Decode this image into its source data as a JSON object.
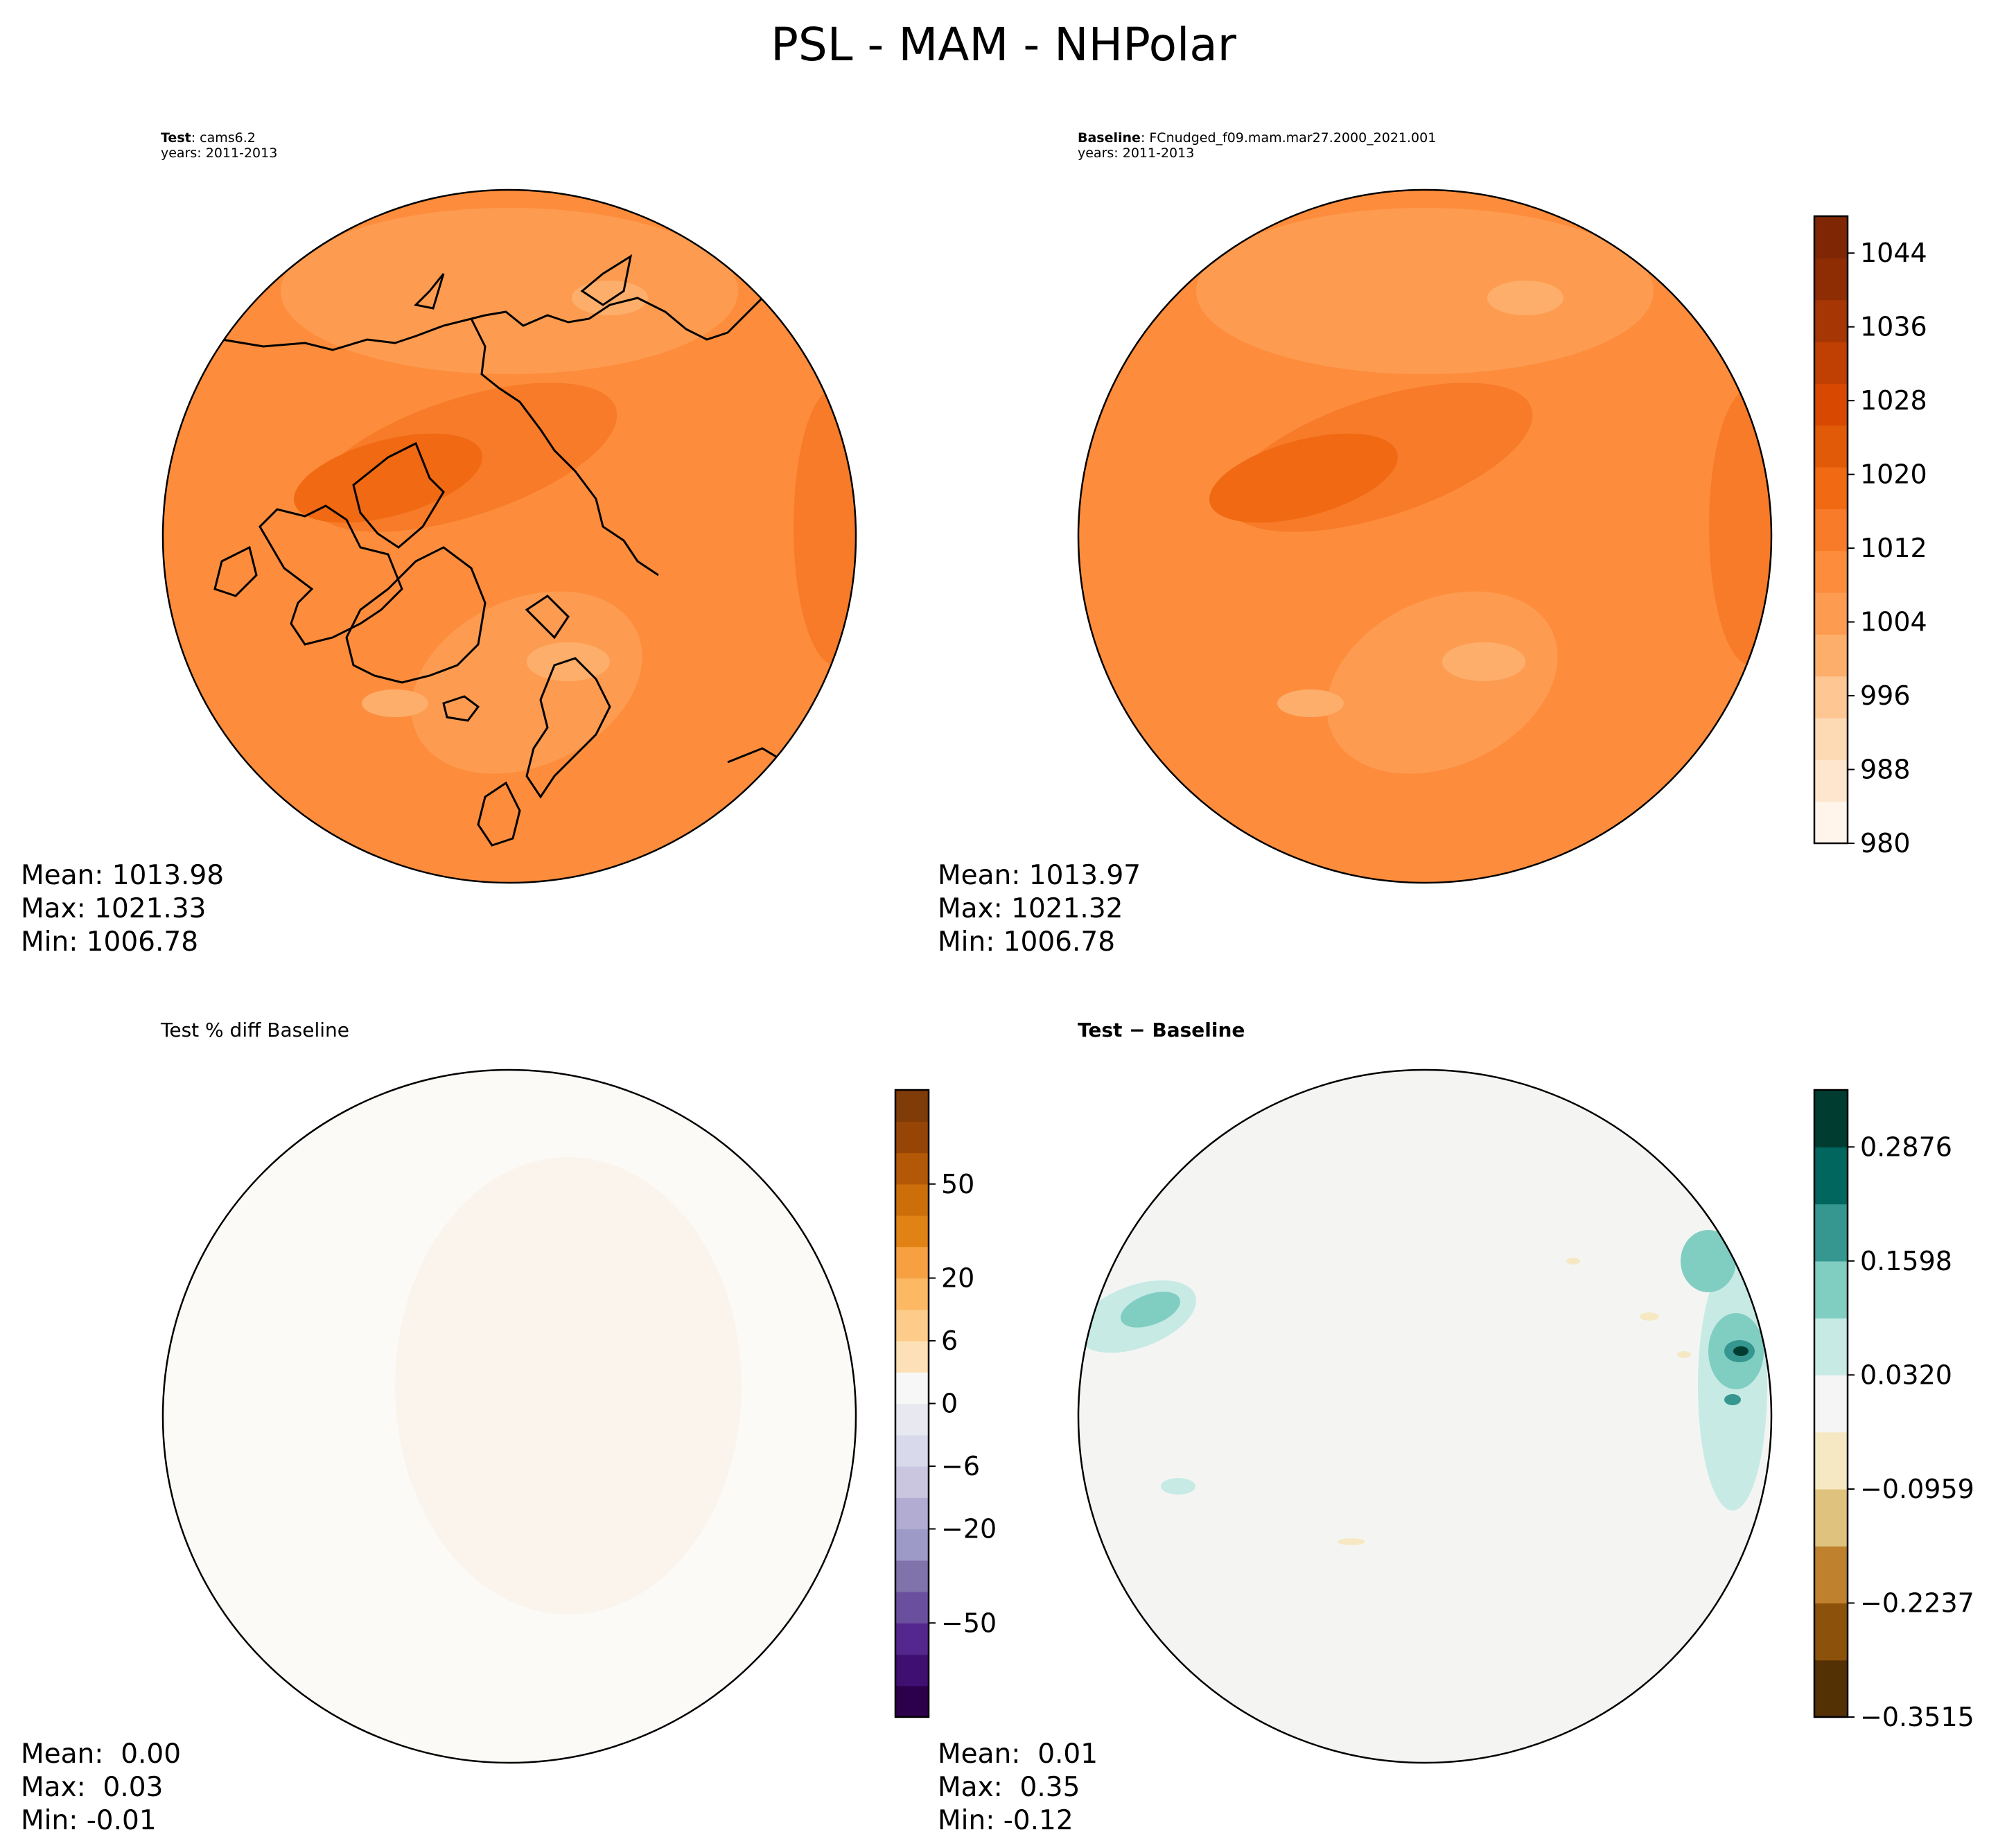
{
  "figure": {
    "title": "PSL - MAM - NHPolar"
  },
  "colors": {
    "coast": "#000000",
    "psl_ramp": [
      "#fff5eb",
      "#fee6ce",
      "#fdd9b4",
      "#fdc692",
      "#fdae6b",
      "#fd9c51",
      "#fd8d3c",
      "#f77b28",
      "#f16913",
      "#e05a07",
      "#d94801",
      "#c03f02",
      "#a63603",
      "#8e2d04",
      "#7f2704"
    ],
    "pct_ramp": [
      "#2d004b",
      "#3f0f72",
      "#54278f",
      "#6b4f9f",
      "#8073ac",
      "#9e9ac8",
      "#b2abd2",
      "#cbc6e0",
      "#d8daeb",
      "#e8e8f0",
      "#f7f7f7",
      "#fee0b6",
      "#fdcc8a",
      "#fdb863",
      "#f7a041",
      "#e08214",
      "#cc6f0b",
      "#b35806",
      "#974507",
      "#7f3b08"
    ],
    "diff_ramp": [
      "#543005",
      "#8c510a",
      "#bf812d",
      "#dfc27d",
      "#f6e8c3",
      "#f5f5f5",
      "#c7eae5",
      "#80cdc1",
      "#35978f",
      "#01665e",
      "#003c30"
    ]
  },
  "panels": {
    "test": {
      "label_bold": "Test",
      "label_rest": ": cams6.2",
      "years": "years: 2011-2013",
      "mean": "Mean: 1013.98",
      "max": "Max: 1021.33",
      "min": "Min: 1006.78"
    },
    "baseline": {
      "label_bold": "Baseline",
      "label_rest": ": FCnudged_f09.mam.mar27.2000_2021.001",
      "years": "years: 2011-2013",
      "mean": "Mean: 1013.97",
      "max": "Max: 1021.32",
      "min": "Min: 1006.78"
    },
    "pct": {
      "title": "Test % diff Baseline",
      "mean": "Mean:  0.00",
      "max": "Max:  0.03",
      "min": "Min: -0.01"
    },
    "diff": {
      "title": "Test − Baseline",
      "mean": "Mean:  0.01",
      "max": "Max:  0.35",
      "min": "Min: -0.12"
    }
  },
  "chart_data": [
    {
      "type": "heatmap",
      "panel": "Test",
      "projection": "North polar stereographic",
      "variable": "PSL",
      "season": "MAM",
      "colorbar": {
        "range": [
          980,
          1048
        ],
        "ticks": [
          980,
          988,
          996,
          1004,
          1012,
          1020,
          1028,
          1036,
          1044
        ],
        "levels": 17
      },
      "stats": {
        "mean": 1013.98,
        "max": 1021.33,
        "min": 1006.78
      }
    },
    {
      "type": "heatmap",
      "panel": "Baseline",
      "projection": "North polar stereographic",
      "variable": "PSL",
      "season": "MAM",
      "colorbar": {
        "range": [
          980,
          1048
        ],
        "ticks": [
          980,
          988,
          996,
          1004,
          1012,
          1020,
          1028,
          1036,
          1044
        ],
        "levels": 17
      },
      "stats": {
        "mean": 1013.97,
        "max": 1021.32,
        "min": 1006.78
      }
    },
    {
      "type": "heatmap",
      "panel": "Test % diff Baseline",
      "colorbar": {
        "ticks": [
          -50,
          -20,
          -6,
          0,
          6,
          20,
          50
        ],
        "tick_labels": [
          "−50",
          "−20",
          "−6",
          "0",
          "6",
          "20",
          "50"
        ],
        "segments": 20
      },
      "stats": {
        "mean": 0.0,
        "max": 0.03,
        "min": -0.01
      }
    },
    {
      "type": "heatmap",
      "panel": "Test − Baseline",
      "colorbar": {
        "range": [
          -0.3515,
          0.3515
        ],
        "ticks": [
          -0.3515,
          -0.2237,
          -0.0959,
          0.032,
          0.1598,
          0.2876
        ],
        "tick_labels": [
          "−0.3515",
          "−0.2237",
          "−0.0959",
          "0.0320",
          "0.1598",
          "0.2876"
        ],
        "levels": 11
      },
      "stats": {
        "mean": 0.01,
        "max": 0.35,
        "min": -0.12
      }
    }
  ]
}
